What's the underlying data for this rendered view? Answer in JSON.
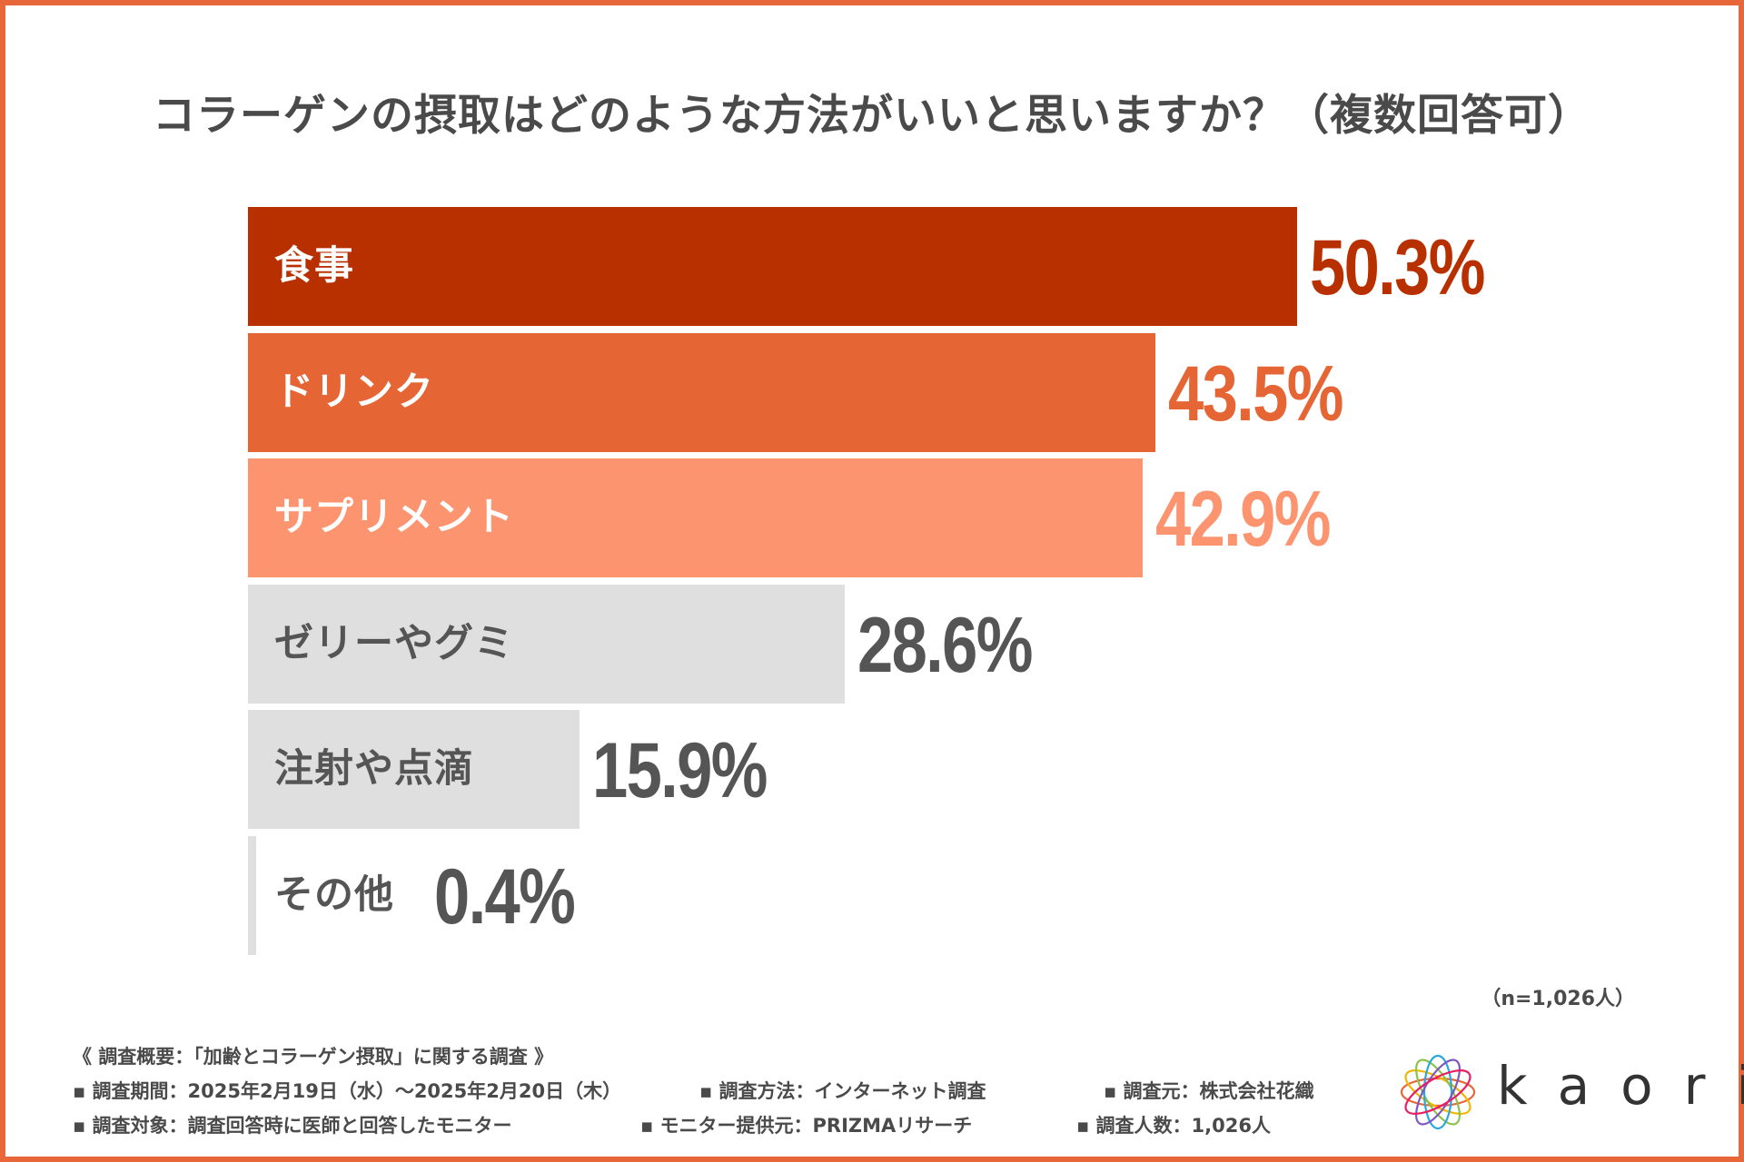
{
  "chart_data": {
    "type": "bar",
    "orientation": "horizontal",
    "title": "コラーゲンの摂取はどのような方法がいいと思いますか？（複数回答可）",
    "categories": [
      "食事",
      "ドリンク",
      "サプリメント",
      "ゼリーやグミ",
      "注射や点滴",
      "その他"
    ],
    "values": [
      50.3,
      43.5,
      42.9,
      28.6,
      15.9,
      0.4
    ],
    "value_labels": [
      "50.3%",
      "43.5%",
      "42.9%",
      "28.6%",
      "15.9%",
      "0.4%"
    ],
    "unit": "%",
    "xlim": [
      0,
      60
    ],
    "bar_colors": [
      "#b83000",
      "#e66535",
      "#fd9470",
      "#dfdfdf",
      "#dfdfdf",
      "#dfdfdf"
    ],
    "label_colors": [
      "#ffffff",
      "#ffffff",
      "#ffffff",
      "#555555",
      "#555555",
      "#555555"
    ],
    "value_colors": [
      "#b83000",
      "#e66535",
      "#fd9470",
      "#555555",
      "#555555",
      "#555555"
    ],
    "sample_note": "（n=1,026人）"
  },
  "footer": {
    "heading": "《 調査概要：「加齢とコラーゲン摂取」に関する調査 》",
    "items": [
      "▪ 調査期間：2025年2月19日（水）～2025年2月20日（木）",
      "▪ 調査方法：インターネット調査",
      "▪ 調査元：株式会社花織",
      "▪ 調査対象：調査回答時に医師と回答したモニター",
      "▪ モニター提供元：PRIZMAリサーチ",
      "▪ 調査人数：1,026人"
    ]
  },
  "logo": {
    "text": "kaori"
  },
  "colors": {
    "border": "#e8673a",
    "title": "#4a4a4a"
  }
}
